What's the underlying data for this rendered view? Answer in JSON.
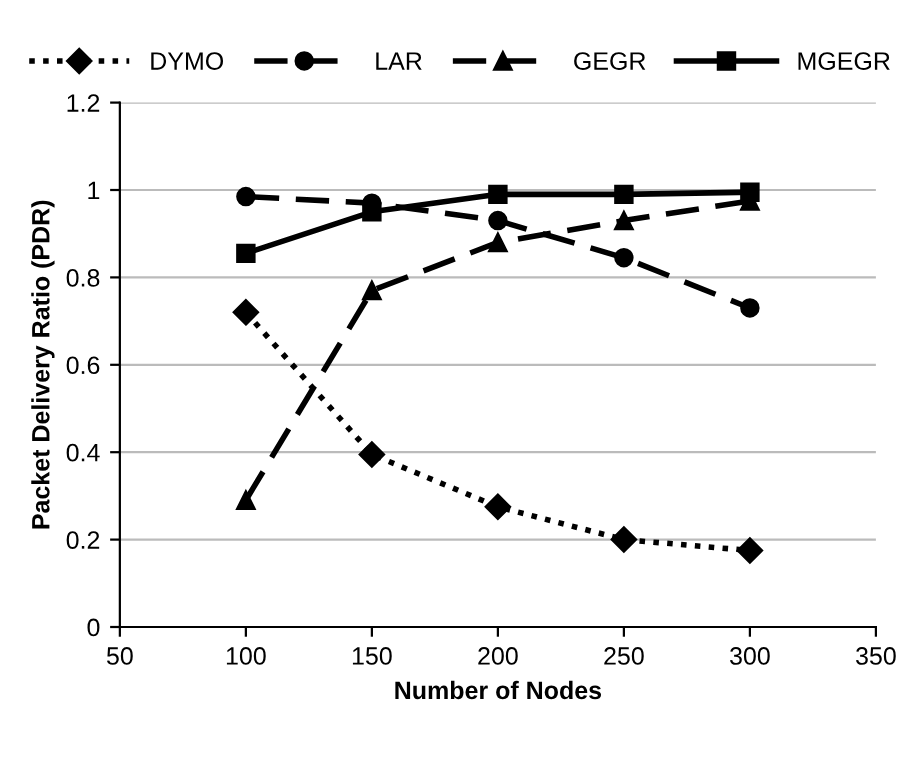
{
  "chart_data": {
    "type": "line",
    "xlabel": "Number of Nodes",
    "ylabel": "Packet Delivery Ratio (PDR)",
    "x": [
      100,
      150,
      200,
      250,
      300
    ],
    "series": [
      {
        "name": "DYMO",
        "color": "#000000",
        "marker": "diamond",
        "line_style": "dotted",
        "values": [
          0.72,
          0.395,
          0.275,
          0.2,
          0.175
        ]
      },
      {
        "name": "LAR",
        "color": "#000000",
        "marker": "circle",
        "line_style": "dashed",
        "values": [
          0.985,
          0.97,
          0.93,
          0.845,
          0.73
        ]
      },
      {
        "name": "GEGR",
        "color": "#000000",
        "marker": "triangle",
        "line_style": "dashed",
        "values": [
          0.29,
          0.77,
          0.88,
          0.93,
          0.975
        ]
      },
      {
        "name": "MGEGR",
        "color": "#000000",
        "marker": "square",
        "line_style": "solid",
        "values": [
          0.855,
          0.95,
          0.99,
          0.99,
          0.995
        ]
      }
    ],
    "xlim": [
      50,
      350
    ],
    "xticks": [
      50,
      100,
      150,
      200,
      250,
      300,
      350
    ],
    "ylim": [
      0,
      1.2
    ],
    "yticks": [
      0,
      0.2,
      0.4,
      0.6,
      0.8,
      1,
      1.2
    ],
    "grid": "y",
    "legend": "top"
  }
}
